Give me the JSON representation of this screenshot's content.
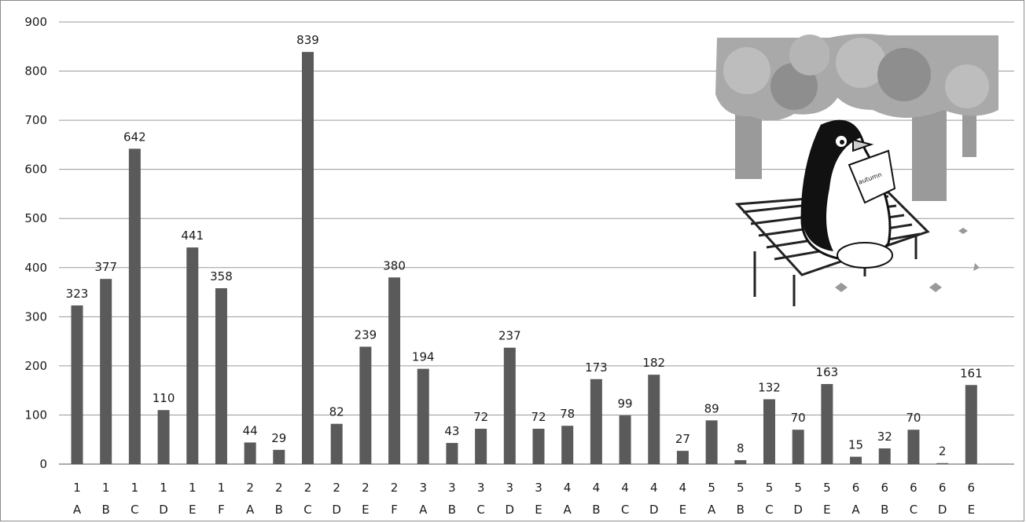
{
  "chart_data": {
    "type": "bar",
    "title": "",
    "xlabel": "",
    "ylabel": "",
    "ylim": [
      0,
      900
    ],
    "yticks": [
      0,
      100,
      200,
      300,
      400,
      500,
      600,
      700,
      800,
      900
    ],
    "grid": "horizontal",
    "bar_color": "#5a5a5a",
    "grid_color": "#9a9a9a",
    "categories": [
      {
        "grade": "1",
        "cls": "A"
      },
      {
        "grade": "1",
        "cls": "B"
      },
      {
        "grade": "1",
        "cls": "C"
      },
      {
        "grade": "1",
        "cls": "D"
      },
      {
        "grade": "1",
        "cls": "E"
      },
      {
        "grade": "1",
        "cls": "F"
      },
      {
        "grade": "2",
        "cls": "A"
      },
      {
        "grade": "2",
        "cls": "B"
      },
      {
        "grade": "2",
        "cls": "C"
      },
      {
        "grade": "2",
        "cls": "D"
      },
      {
        "grade": "2",
        "cls": "E"
      },
      {
        "grade": "2",
        "cls": "F"
      },
      {
        "grade": "3",
        "cls": "A"
      },
      {
        "grade": "3",
        "cls": "B"
      },
      {
        "grade": "3",
        "cls": "C"
      },
      {
        "grade": "3",
        "cls": "D"
      },
      {
        "grade": "3",
        "cls": "E"
      },
      {
        "grade": "4",
        "cls": "A"
      },
      {
        "grade": "4",
        "cls": "B"
      },
      {
        "grade": "4",
        "cls": "C"
      },
      {
        "grade": "4",
        "cls": "D"
      },
      {
        "grade": "4",
        "cls": "E"
      },
      {
        "grade": "5",
        "cls": "A"
      },
      {
        "grade": "5",
        "cls": "B"
      },
      {
        "grade": "5",
        "cls": "C"
      },
      {
        "grade": "5",
        "cls": "D"
      },
      {
        "grade": "5",
        "cls": "E"
      },
      {
        "grade": "6",
        "cls": "A"
      },
      {
        "grade": "6",
        "cls": "B"
      },
      {
        "grade": "6",
        "cls": "C"
      },
      {
        "grade": "6",
        "cls": "D"
      },
      {
        "grade": "6",
        "cls": "E"
      }
    ],
    "values": [
      323,
      377,
      642,
      110,
      441,
      358,
      44,
      29,
      839,
      82,
      239,
      380,
      194,
      43,
      72,
      237,
      72,
      78,
      173,
      99,
      182,
      27,
      89,
      8,
      132,
      70,
      163,
      15,
      32,
      70,
      2,
      161
    ]
  },
  "illustration": {
    "subject": "penguin-reading-on-bench-icon",
    "book_text": "autumn"
  }
}
